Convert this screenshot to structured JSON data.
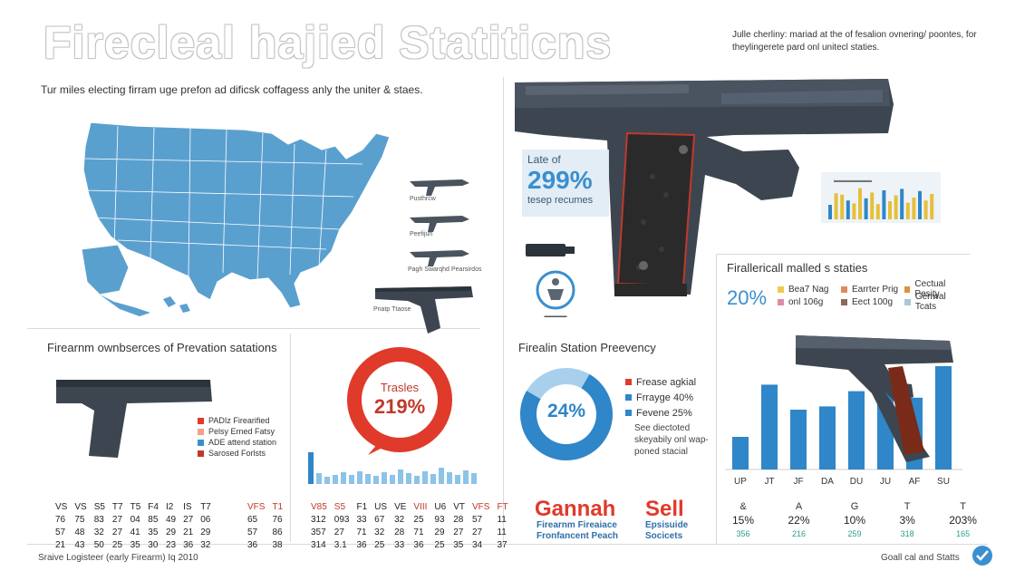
{
  "title": "Firecleal hajied Statiticns",
  "top_right_note": "Julle cherliny: mariad at the of fesalion ovnering/ poontes, for theylingerete pard onl unitecl staties.",
  "map_caption": "Tur miles electing firram uge prefon ad dificsk coffagess anly the uniter & staes.",
  "gun_labels": [
    "Pusthrcw",
    "Peefijun",
    "Pagh Swarqhd",
    "Pearsirdos",
    "Pnatp Ttaose"
  ],
  "stat_box": {
    "line1": "Late of",
    "value": "299%",
    "line2": "tesep recumes"
  },
  "mid_left_heading": "Firearnm ownbserces of Prevation satations",
  "mid_left_legend": [
    "PADIz Firearified",
    "Pelsy Erned Fatsy",
    "ADE attend station",
    "Sarosed Forlsts"
  ],
  "donut_red": {
    "label": "Trasles",
    "value": "219%"
  },
  "mid_center_heading": "Firealin Station Preevency",
  "donut_blue": {
    "value": "24%"
  },
  "blue_legend": [
    "Frease agkial",
    "Frrayge 40%",
    "Fevene 25%"
  ],
  "blue_note": "See diectoted skeyabily onl wap-poned stacial",
  "right_panel": {
    "heading": "Firallericall malled s staties",
    "percent": "20%",
    "legend": [
      "Bea7 Nag",
      "Earrter Prig",
      "Cectual Pesity",
      "onl 106g",
      "Eect 100g",
      "Genwal Tcats"
    ]
  },
  "right_bar_labels": [
    "UP",
    "JT",
    "JF",
    "DA",
    "DU",
    "JU",
    "AF",
    "SU"
  ],
  "right_bar_values": [
    30,
    78,
    55,
    58,
    72,
    75,
    66,
    95
  ],
  "mini_bars_values": [
    40,
    72,
    68,
    52,
    44,
    86,
    58,
    74,
    42,
    80,
    50,
    66,
    84,
    46,
    60,
    78,
    52,
    70
  ],
  "small_bars_values": [
    35,
    12,
    8,
    10,
    13,
    10,
    14,
    11,
    9,
    13,
    10,
    16,
    12,
    9,
    14,
    11,
    18,
    13,
    10,
    15,
    12
  ],
  "table1": [
    [
      "VS",
      "VS",
      "S5",
      "T7",
      "T5",
      "F4",
      "I2",
      "IS",
      "T7"
    ],
    [
      "76",
      "75",
      "83",
      "27",
      "04",
      "85",
      "49",
      "27",
      "06"
    ],
    [
      "57",
      "48",
      "32",
      "27",
      "41",
      "35",
      "29",
      "21",
      "29"
    ],
    [
      "21",
      "43",
      "50",
      "25",
      "35",
      "30",
      "23",
      "36",
      "32"
    ]
  ],
  "table2": [
    [
      "VFS",
      "T1"
    ],
    [
      "65",
      "76"
    ],
    [
      "57",
      "86"
    ],
    [
      "36",
      "38"
    ]
  ],
  "table3": [
    [
      "V85",
      "S5",
      "F1",
      "US",
      "VE",
      "VIII",
      "U6",
      "VT",
      "VFS",
      "FT"
    ],
    [
      "312",
      "093",
      "33",
      "67",
      "32",
      "25",
      "93",
      "28",
      "57",
      "11"
    ],
    [
      "357",
      "27",
      "71",
      "32",
      "28",
      "71",
      "29",
      "27",
      "27",
      "11"
    ],
    [
      "314",
      "3.1",
      "36",
      "25",
      "33",
      "36",
      "25",
      "35",
      "34",
      "37"
    ]
  ],
  "promo": {
    "word1": "Gannah",
    "word2": "Sell",
    "sub1": "Firearnm Fireaiace",
    "sub2": "Fronfancent Peach",
    "sub3": "Epsisuide",
    "sub4": "Socicets"
  },
  "bottom_stats": [
    {
      "label": "&",
      "value": "15%",
      "sub": "356"
    },
    {
      "label": "A",
      "value": "22%",
      "sub": "216"
    },
    {
      "label": "G",
      "value": "10%",
      "sub": "259"
    },
    {
      "label": "T",
      "value": "3%",
      "sub": "318"
    },
    {
      "label": "T",
      "value": "203%",
      "sub": "165"
    }
  ],
  "footer_left": "Sraive Logisteer (early Firearm) Iq 2010",
  "footer_right": "Goall cal and Statts",
  "colors": {
    "map": "#5aa0cf",
    "blue": "#3a8fcf",
    "red": "#e03a2b",
    "gun": "#3d4650",
    "grip": "#222"
  }
}
